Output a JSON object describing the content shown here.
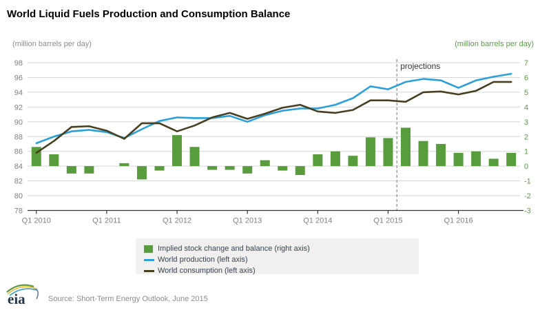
{
  "title": "World Liquid Fuels Production and Consumption Balance",
  "axis_units": {
    "left": "(million barrels per day)",
    "right": "(million barrels per day)"
  },
  "chart_data": {
    "type": "bar+line",
    "title": "World Liquid Fuels Production and Consumption Balance",
    "x": [
      "Q1 2010",
      "Q2 2010",
      "Q3 2010",
      "Q4 2010",
      "Q1 2011",
      "Q2 2011",
      "Q3 2011",
      "Q4 2011",
      "Q1 2012",
      "Q2 2012",
      "Q3 2012",
      "Q4 2012",
      "Q1 2013",
      "Q2 2013",
      "Q3 2013",
      "Q4 2013",
      "Q1 2014",
      "Q2 2014",
      "Q3 2014",
      "Q4 2014",
      "Q1 2015",
      "Q2 2015",
      "Q3 2015",
      "Q4 2015",
      "Q1 2016",
      "Q2 2016",
      "Q3 2016",
      "Q4 2016"
    ],
    "x_tick_labels": [
      "Q1 2010",
      "Q1 2011",
      "Q1 2012",
      "Q1 2013",
      "Q1 2014",
      "Q1 2015",
      "Q1 2016"
    ],
    "left_axis": {
      "label": "(million barrels per day)",
      "min": 78,
      "max": 98,
      "ticks": [
        78,
        80,
        82,
        84,
        86,
        88,
        90,
        92,
        94,
        96,
        98
      ]
    },
    "right_axis": {
      "label": "(million barrels per day)",
      "min": -3,
      "max": 7,
      "ticks": [
        -3,
        -2,
        -1,
        0,
        1,
        2,
        3,
        4,
        5,
        6,
        7
      ]
    },
    "grid": true,
    "legend_position": "bottom",
    "series": [
      {
        "name": "Implied stock change and balance (right axis)",
        "type": "bar",
        "axis": "right",
        "color": "#589c3e",
        "values": [
          1.3,
          0.8,
          -0.5,
          -0.5,
          0.0,
          0.2,
          -0.9,
          -0.3,
          2.1,
          1.3,
          -0.25,
          -0.25,
          -0.5,
          0.4,
          -0.3,
          -0.6,
          0.8,
          1.0,
          0.7,
          1.95,
          1.9,
          2.6,
          1.7,
          1.5,
          0.9,
          1.0,
          0.5,
          0.9
        ]
      },
      {
        "name": "World production (left axis)",
        "type": "line",
        "axis": "left",
        "color": "#29a0da",
        "values": [
          87.1,
          88.0,
          88.7,
          88.9,
          88.6,
          87.8,
          89.0,
          90.1,
          90.6,
          90.5,
          90.5,
          90.8,
          90.0,
          90.9,
          91.5,
          91.8,
          91.8,
          92.3,
          93.2,
          94.8,
          94.4,
          95.4,
          95.8,
          95.6,
          94.6,
          95.6,
          96.1,
          96.5
        ]
      },
      {
        "name": "World consumption (left axis)",
        "type": "line",
        "axis": "left",
        "color": "#473f20",
        "values": [
          85.8,
          87.4,
          89.3,
          89.4,
          88.8,
          87.7,
          89.8,
          89.8,
          88.7,
          89.5,
          90.6,
          91.2,
          90.4,
          91.1,
          91.9,
          92.3,
          91.4,
          91.2,
          91.6,
          92.9,
          92.9,
          92.7,
          94.0,
          94.1,
          93.7,
          94.2,
          95.4,
          95.4
        ]
      }
    ],
    "annotations": {
      "projections_label": "projections",
      "projection_boundary_after": "Q1 2015"
    }
  },
  "colors": {
    "bar_green": "#589c3e",
    "production_blue": "#29a0da",
    "consumption_olive": "#473f20",
    "right_axis_text": "#579d42",
    "axis_text": "#808080",
    "gridline": "#d6d6d6",
    "axis_line": "#333333",
    "projection_dash": "#999999"
  },
  "footer": {
    "source": "Source: Short-Term Energy Outlook, June 2015",
    "logo_text": "eia"
  }
}
